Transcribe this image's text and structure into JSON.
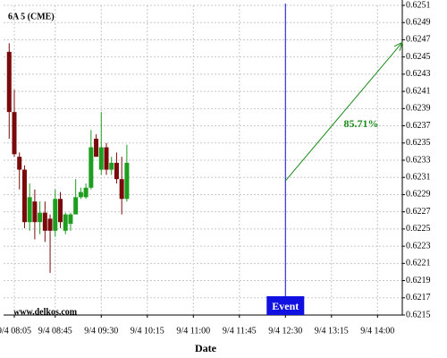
{
  "chart_data": {
    "type": "candlestick",
    "title": "6A 5 (CME)",
    "watermark": "www.delkos.com",
    "x_label": "Date",
    "x": [
      "9/4 08:00",
      "9/4 08:05",
      "9/4 08:10",
      "9/4 08:15",
      "9/4 08:20",
      "9/4 08:25",
      "9/4 08:30",
      "9/4 08:35",
      "9/4 08:40",
      "9/4 08:45",
      "9/4 08:50",
      "9/4 08:55",
      "9/4 09:00",
      "9/4 09:05",
      "9/4 09:10",
      "9/4 09:15",
      "9/4 09:20",
      "9/4 09:25",
      "9/4 09:30",
      "9/4 09:35",
      "9/4 09:40",
      "9/4 09:45",
      "9/4 09:50",
      "9/4 09:55"
    ],
    "open": [
      0.62456,
      0.62386,
      0.62334,
      0.62319,
      0.62258,
      0.62282,
      0.62258,
      0.62269,
      0.62262,
      0.62248,
      0.62285,
      0.62248,
      0.62256,
      0.62267,
      0.62287,
      0.62287,
      0.62298,
      0.62355,
      0.62319,
      0.62345,
      0.62319,
      0.62327,
      0.62308,
      0.62285
    ],
    "high": [
      0.62466,
      0.62412,
      0.62339,
      0.62324,
      0.62303,
      0.62296,
      0.62282,
      0.62282,
      0.62267,
      0.62296,
      0.62293,
      0.62269,
      0.62269,
      0.62308,
      0.62298,
      0.62303,
      0.62365,
      0.6236,
      0.62386,
      0.6235,
      0.62334,
      0.62339,
      0.62334,
      0.62348
    ],
    "low": [
      0.62355,
      0.62334,
      0.62296,
      0.62251,
      0.62248,
      0.62238,
      0.62244,
      0.62235,
      0.62199,
      0.62241,
      0.62251,
      0.62244,
      0.62248,
      0.62267,
      0.62285,
      0.62285,
      0.62296,
      0.62334,
      0.62313,
      0.62313,
      0.62313,
      0.62303,
      0.62267,
      0.62282
    ],
    "close": [
      0.62386,
      0.62337,
      0.62319,
      0.62258,
      0.62287,
      0.62258,
      0.62269,
      0.62248,
      0.62248,
      0.62285,
      0.62258,
      0.62267,
      0.62267,
      0.62287,
      0.62293,
      0.62298,
      0.62345,
      0.62334,
      0.62345,
      0.62319,
      0.62327,
      0.62308,
      0.62285,
      0.62327
    ],
    "up_color": "#1e9e1e",
    "down_color": "#7a0a0a",
    "ylim": [
      0.6215,
      0.6251
    ],
    "yticks": [
      0.6215,
      0.6217,
      0.6219,
      0.6221,
      0.6223,
      0.6225,
      0.6227,
      0.6229,
      0.6231,
      0.6233,
      0.6235,
      0.6237,
      0.6239,
      0.6241,
      0.6243,
      0.6245,
      0.6247,
      0.6249,
      0.6251
    ],
    "xticks": [
      "9/4 08:05",
      "9/4 08:45",
      "9/4 09:30",
      "9/4 10:15",
      "9/4 11:00",
      "9/4 11:45",
      "9/4 12:30",
      "9/4 13:15",
      "9/4 14:00"
    ],
    "grid": true,
    "event": {
      "label": "Event",
      "x": "9/4 12:30",
      "color": "#1010e0"
    },
    "forecast": {
      "label": "85.71%",
      "start": 0.62306,
      "end": 0.62467,
      "color": "#1a8a1a"
    }
  }
}
